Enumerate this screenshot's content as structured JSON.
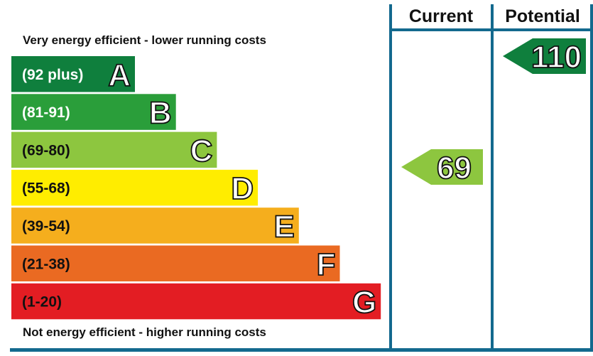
{
  "chart_data": {
    "type": "bar",
    "top_caption": "Very energy efficient - lower running costs",
    "bottom_caption": "Not energy efficient - higher running costs",
    "columns": {
      "current": "Current",
      "potential": "Potential"
    },
    "bands": [
      {
        "letter": "A",
        "range": "(92 plus)",
        "min": 92,
        "max": 200,
        "color": "#0f7f3d",
        "text": "light"
      },
      {
        "letter": "B",
        "range": "(81-91)",
        "min": 81,
        "max": 91,
        "color": "#2a9e3a",
        "text": "light"
      },
      {
        "letter": "C",
        "range": "(69-80)",
        "min": 69,
        "max": 80,
        "color": "#8dc63f",
        "text": "dark"
      },
      {
        "letter": "D",
        "range": "(55-68)",
        "min": 55,
        "max": 68,
        "color": "#ffed00",
        "text": "dark"
      },
      {
        "letter": "E",
        "range": "(39-54)",
        "min": 39,
        "max": 54,
        "color": "#f5ae1d",
        "text": "dark"
      },
      {
        "letter": "F",
        "range": "(21-38)",
        "min": 21,
        "max": 38,
        "color": "#ea6a22",
        "text": "dark"
      },
      {
        "letter": "G",
        "range": "(1-20)",
        "min": 1,
        "max": 20,
        "color": "#e31d23",
        "text": "dark"
      }
    ],
    "current": {
      "value": 69,
      "label": "69",
      "band": "C",
      "color": "#8dc63f"
    },
    "potential": {
      "value": 110,
      "label": "110",
      "band": "A",
      "color": "#0f7f3d"
    }
  },
  "colors": {
    "frame": "#13698e",
    "ink": "#111111",
    "background": "#ffffff"
  }
}
